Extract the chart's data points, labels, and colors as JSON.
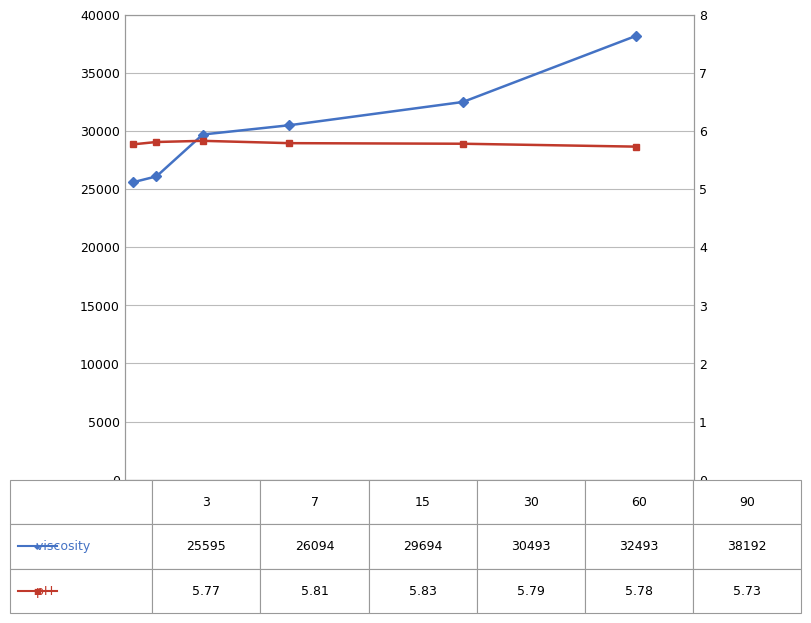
{
  "x": [
    3,
    7,
    15,
    30,
    60,
    90
  ],
  "viscosity": [
    25595,
    26094,
    29694,
    30493,
    32493,
    38192
  ],
  "pH": [
    5.77,
    5.81,
    5.83,
    5.79,
    5.78,
    5.73
  ],
  "viscosity_color": "#4472C4",
  "pH_color": "#C0392B",
  "left_ylim": [
    0,
    40000
  ],
  "left_yticks": [
    0,
    5000,
    10000,
    15000,
    20000,
    25000,
    30000,
    35000,
    40000
  ],
  "right_ylim": [
    0,
    8
  ],
  "right_yticks": [
    0,
    1,
    2,
    3,
    4,
    5,
    6,
    7,
    8
  ],
  "bg_color": "#FFFFFF",
  "grid_color": "#BBBBBB",
  "table_viscosity_label": "viscosity",
  "table_pH_label": "pH",
  "table_viscosity_values": [
    "25595",
    "26094",
    "29694",
    "30493",
    "32493",
    "38192"
  ],
  "table_pH_values": [
    "5.77",
    "5.81",
    "5.83",
    "5.79",
    "5.78",
    "5.73"
  ],
  "x_tick_labels": [
    "3",
    "7",
    "15",
    "30",
    "60",
    "90"
  ],
  "font_size": 9,
  "marker_size": 5,
  "line_width": 1.8
}
